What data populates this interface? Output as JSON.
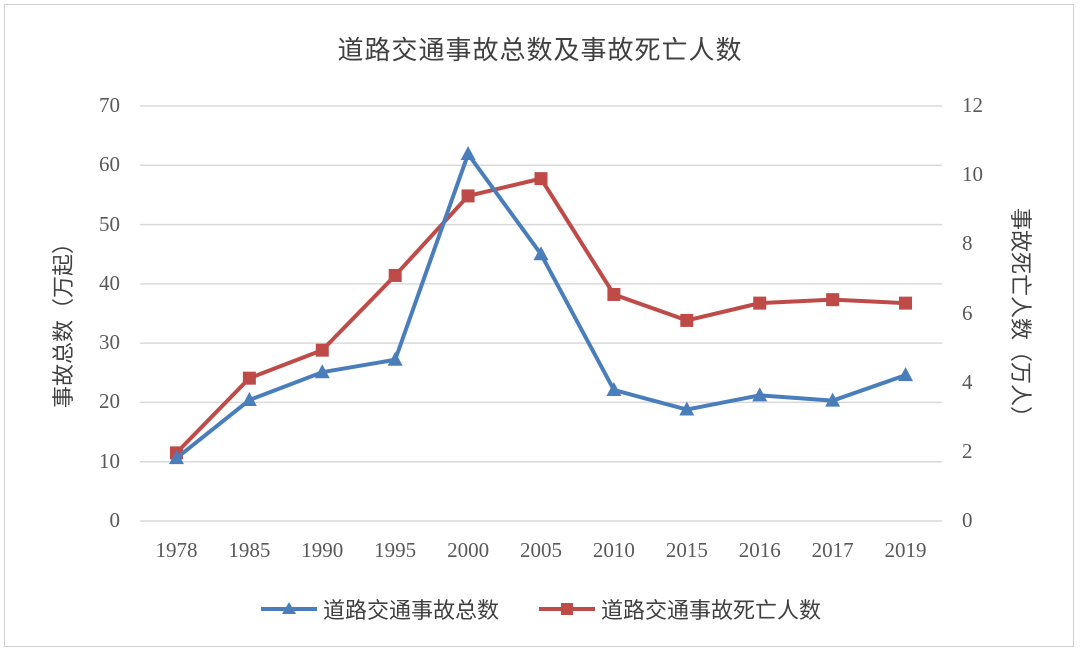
{
  "chart_data": {
    "type": "line",
    "title": "道路交通事故总数及事故死亡人数",
    "categories": [
      "1978",
      "1985",
      "1990",
      "1995",
      "2000",
      "2005",
      "2010",
      "2015",
      "2016",
      "2017",
      "2019"
    ],
    "xlabel": "",
    "ylabel": "事故总数（万起）",
    "ylabel_right": "事故死亡人数（万人）",
    "ylim": [
      0,
      70
    ],
    "ylim_right": [
      0,
      12
    ],
    "yticks": [
      "70",
      "60",
      "50",
      "40",
      "30",
      "20",
      "10",
      "0"
    ],
    "yticks_right": [
      "12",
      "10",
      "8",
      "6",
      "4",
      "2",
      "0"
    ],
    "grid": true,
    "legend_position": "bottom",
    "series": [
      {
        "name": "道路交通事故总数",
        "axis": "left",
        "color": "#4a7ebb",
        "marker": "triangle",
        "values": [
          10.6,
          20.4,
          25.1,
          27.2,
          61.9,
          45.0,
          22.1,
          18.8,
          21.2,
          20.3,
          24.6
        ]
      },
      {
        "name": "道路交通事故死亡人数",
        "axis": "right",
        "color": "#be4b48",
        "marker": "square",
        "values": [
          1.97,
          4.13,
          4.94,
          7.1,
          9.4,
          9.9,
          6.55,
          5.8,
          6.3,
          6.4,
          6.3
        ]
      }
    ]
  }
}
